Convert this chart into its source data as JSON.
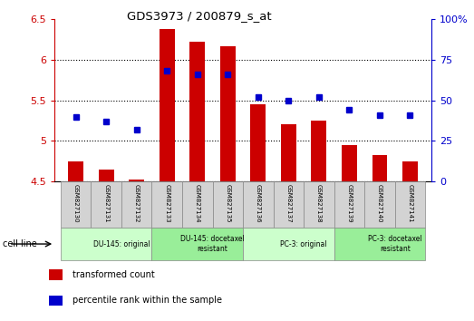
{
  "title": "GDS3973 / 200879_s_at",
  "samples": [
    "GSM827130",
    "GSM827131",
    "GSM827132",
    "GSM827133",
    "GSM827134",
    "GSM827135",
    "GSM827136",
    "GSM827137",
    "GSM827138",
    "GSM827139",
    "GSM827140",
    "GSM827141"
  ],
  "transformed_count": [
    4.75,
    4.65,
    4.52,
    6.38,
    6.22,
    6.17,
    5.45,
    5.2,
    5.25,
    4.95,
    4.83,
    4.75
  ],
  "percentile_rank": [
    40,
    37,
    32,
    68,
    66,
    66,
    52,
    50,
    52,
    44,
    41,
    41
  ],
  "ylim_left": [
    4.5,
    6.5
  ],
  "ylim_right": [
    0,
    100
  ],
  "yticks_left": [
    4.5,
    5.0,
    5.5,
    6.0,
    6.5
  ],
  "ytick_labels_left": [
    "4.5",
    "5",
    "5.5",
    "6",
    "6.5"
  ],
  "yticks_right": [
    0,
    25,
    50,
    75,
    100
  ],
  "ytick_labels_right": [
    "0",
    "25",
    "50",
    "75",
    "100%"
  ],
  "bar_color": "#cc0000",
  "dot_color": "#0000cc",
  "groups": [
    {
      "label": "DU-145: original",
      "start": 0,
      "end": 3,
      "color": "#ccffcc"
    },
    {
      "label": "DU-145: docetaxel\nresistant",
      "start": 3,
      "end": 6,
      "color": "#99ee99"
    },
    {
      "label": "PC-3: original",
      "start": 6,
      "end": 9,
      "color": "#ccffcc"
    },
    {
      "label": "PC-3: docetaxel\nresistant",
      "start": 9,
      "end": 12,
      "color": "#99ee99"
    }
  ],
  "cell_line_label": "cell line",
  "legend_items": [
    {
      "color": "#cc0000",
      "label": "transformed count"
    },
    {
      "color": "#0000cc",
      "label": "percentile rank within the sample"
    }
  ],
  "left_axis_color": "#cc0000",
  "right_axis_color": "#0000cc",
  "bar_bottom": 4.5,
  "dot_marker": "s",
  "dot_size": 5,
  "bar_width": 0.5
}
